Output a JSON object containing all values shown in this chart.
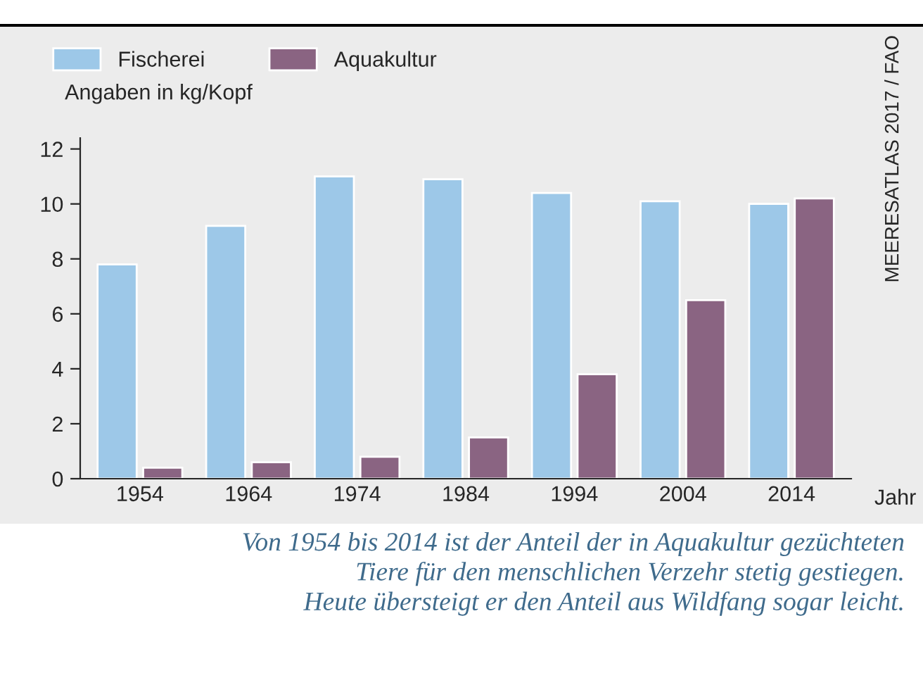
{
  "chart_data": {
    "type": "bar",
    "ylabel": "Angaben in kg/Kopf",
    "xlabel": "Jahr",
    "categories": [
      "1954",
      "1964",
      "1974",
      "1984",
      "1994",
      "2004",
      "2014"
    ],
    "series": [
      {
        "name": "Fischerei",
        "color": "#9dc8e8",
        "values": [
          7.8,
          9.2,
          11.0,
          10.9,
          10.4,
          10.1,
          10.0
        ]
      },
      {
        "name": "Aquakultur",
        "color": "#8a6482",
        "values": [
          0.4,
          0.6,
          0.8,
          1.5,
          3.8,
          6.5,
          10.2
        ]
      }
    ],
    "ylim": [
      0,
      12.4
    ],
    "yticks": [
      0,
      2,
      4,
      6,
      8,
      10,
      12
    ],
    "grid": false,
    "legend": "top left",
    "annotations": [
      "MEERESATLAS 2017 / FAO",
      "Von 1954 bis 2014 ist der Anteil der in Aquakultur gezüchteten\nTiere für den menschlichen Verzehr stetig gestiegen.\nHeute übersteigt er den Anteil aus Wildfang sogar leicht."
    ]
  }
}
